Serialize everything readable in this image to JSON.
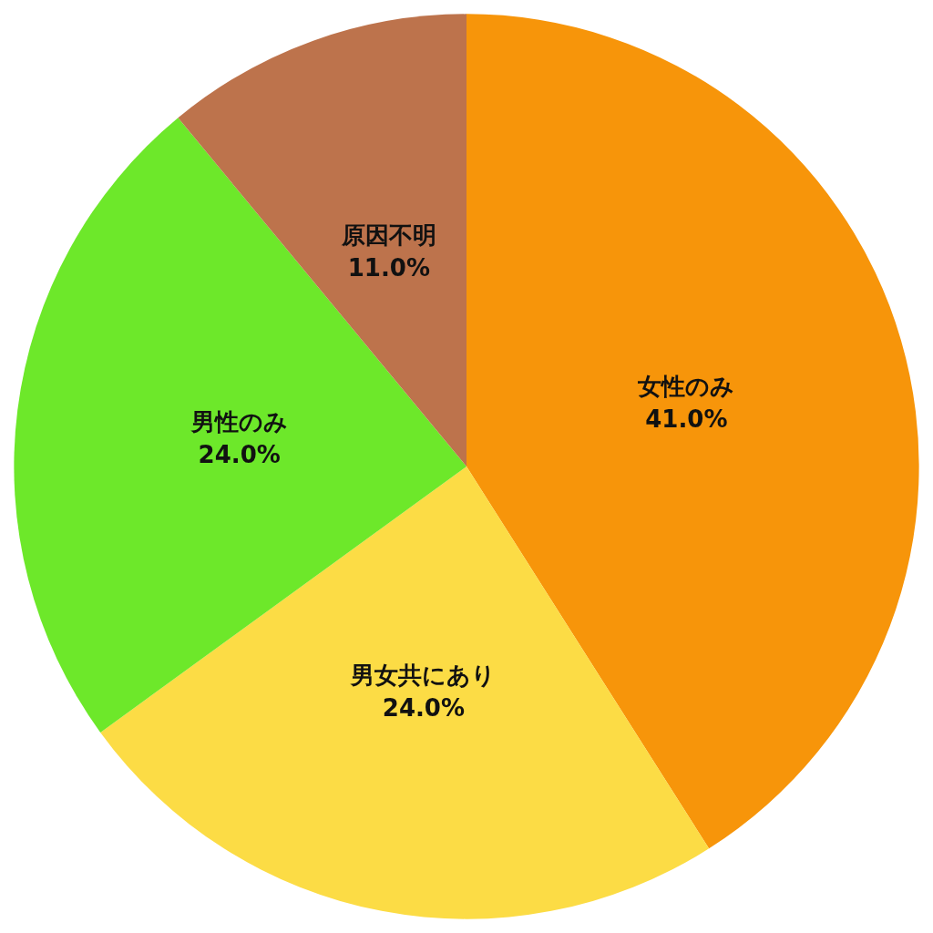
{
  "chart_data": {
    "type": "pie",
    "categories": [
      "女性のみ",
      "男女共にあり",
      "男性のみ",
      "原因不明"
    ],
    "values": [
      41,
      24,
      24,
      11
    ],
    "colors": [
      "#f7950a",
      "#fcdc45",
      "#6de82a",
      "#bd734c"
    ],
    "value_labels": [
      "41.0%",
      "24.0%",
      "24.0%",
      "11.0%"
    ],
    "legend": false
  }
}
